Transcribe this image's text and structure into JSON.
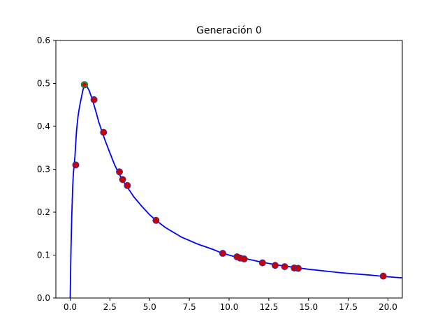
{
  "chart_data": {
    "type": "line",
    "title": "Generación 0",
    "xlabel": "",
    "ylabel": "",
    "xlim": [
      -0.9,
      20.9
    ],
    "ylim": [
      0.0,
      0.6
    ],
    "xticks": [
      0.0,
      2.5,
      5.0,
      7.5,
      10.0,
      12.5,
      15.0,
      17.5,
      20.0
    ],
    "xtick_labels": [
      "0.0",
      "2.5",
      "5.0",
      "7.5",
      "10.0",
      "12.5",
      "15.0",
      "17.5",
      "20.0"
    ],
    "yticks": [
      0.0,
      0.1,
      0.2,
      0.3,
      0.4,
      0.5,
      0.6
    ],
    "ytick_labels": [
      "0.0",
      "0.1",
      "0.2",
      "0.3",
      "0.4",
      "0.5",
      "0.6"
    ],
    "grid": false,
    "series": [
      {
        "kind": "line",
        "color": "#0000ff",
        "x": [
          0.0,
          0.05,
          0.1,
          0.15,
          0.2,
          0.25,
          0.3,
          0.35,
          0.4,
          0.5,
          0.6,
          0.7,
          0.8,
          0.9,
          1.0,
          1.1,
          1.2,
          1.4,
          1.6,
          1.8,
          2.0,
          2.2,
          2.5,
          2.8,
          3.0,
          3.3,
          3.6,
          4.0,
          4.5,
          5.0,
          5.4,
          6.0,
          7.0,
          8.0,
          9.0,
          9.6,
          10.5,
          11.0,
          12.0,
          13.0,
          14.0,
          15.0,
          16.0,
          17.0,
          18.0,
          19.0,
          19.8,
          20.9
        ],
        "y": [
          0.0,
          0.11,
          0.19,
          0.25,
          0.29,
          0.31,
          0.33,
          0.36,
          0.39,
          0.425,
          0.448,
          0.466,
          0.484,
          0.497,
          0.497,
          0.49,
          0.483,
          0.462,
          0.437,
          0.41,
          0.388,
          0.367,
          0.338,
          0.31,
          0.295,
          0.274,
          0.258,
          0.236,
          0.214,
          0.194,
          0.181,
          0.164,
          0.142,
          0.126,
          0.113,
          0.104,
          0.095,
          0.092,
          0.084,
          0.077,
          0.072,
          0.067,
          0.063,
          0.059,
          0.056,
          0.053,
          0.05,
          0.047
        ]
      },
      {
        "kind": "scatter",
        "color": "#cc0000",
        "edgecolor": "#3333aa",
        "x": [
          0.35,
          0.9,
          1.5,
          2.1,
          3.1,
          3.3,
          3.6,
          5.4,
          9.6,
          10.5,
          10.7,
          10.95,
          12.1,
          12.9,
          13.5,
          14.1,
          14.35,
          19.7
        ],
        "y": [
          0.31,
          0.497,
          0.462,
          0.386,
          0.294,
          0.276,
          0.262,
          0.181,
          0.104,
          0.096,
          0.093,
          0.091,
          0.082,
          0.076,
          0.073,
          0.07,
          0.069,
          0.051
        ]
      },
      {
        "kind": "highlight",
        "color": "#33aa33",
        "x": [
          0.9
        ],
        "y": [
          0.497
        ]
      }
    ]
  }
}
